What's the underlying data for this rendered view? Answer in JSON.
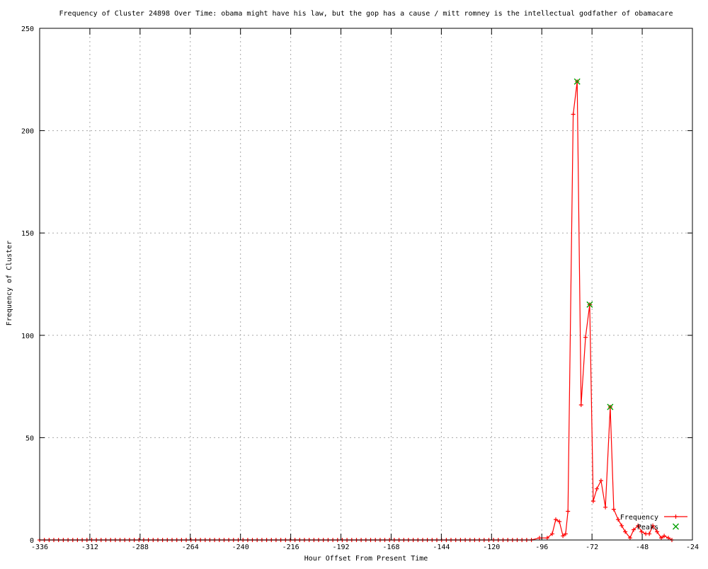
{
  "chart_data": {
    "type": "line",
    "title": "Frequency of Cluster 24898 Over Time: obama might have his law, but the gop has a cause / mitt romney is the intellectual godfather of obamacare",
    "xlabel": "Hour Offset From Present Time",
    "ylabel": "Frequency of Cluster",
    "xlim": [
      -336,
      -24
    ],
    "ylim": [
      0,
      250
    ],
    "x_ticks": [
      -336,
      -312,
      -288,
      -264,
      -240,
      -216,
      -192,
      -168,
      -144,
      -120,
      -96,
      -72,
      -48,
      -24
    ],
    "y_ticks": [
      0,
      50,
      100,
      150,
      200,
      250
    ],
    "grid": "dotted interior gridlines at every major tick",
    "legend_position": "inside bottom-right, no box",
    "colors": {
      "frequency_line": "#ff0000",
      "peaks_marker": "#00a000",
      "axis": "#000000",
      "grid": "#a8a8a8",
      "background": "#ffffff"
    },
    "series": [
      {
        "name": "Frequency",
        "style": "linespoints",
        "marker": "plus",
        "color": "#ff0000",
        "baseline_zeros": {
          "from": -336,
          "to": -99,
          "step": 2.26,
          "value": 0
        },
        "points": [
          [
            -97.1,
            1
          ],
          [
            -93.4,
            1
          ],
          [
            -91.0,
            3
          ],
          [
            -89.3,
            10
          ],
          [
            -87.6,
            9
          ],
          [
            -85.9,
            2
          ],
          [
            -84.6,
            3
          ],
          [
            -83.5,
            14
          ],
          [
            -81.0,
            208
          ],
          [
            -79.1,
            224
          ],
          [
            -77.2,
            66
          ],
          [
            -75.1,
            99
          ],
          [
            -73.1,
            115
          ],
          [
            -71.4,
            19
          ],
          [
            -69.7,
            25
          ],
          [
            -67.7,
            29
          ],
          [
            -65.6,
            16
          ],
          [
            -63.3,
            65
          ],
          [
            -61.6,
            15
          ],
          [
            -59.5,
            10
          ],
          [
            -57.8,
            7
          ],
          [
            -56.1,
            4
          ],
          [
            -53.8,
            1
          ],
          [
            -52.1,
            5
          ],
          [
            -50.0,
            7
          ],
          [
            -48.3,
            4
          ],
          [
            -46.3,
            3
          ],
          [
            -44.6,
            3
          ],
          [
            -42.9,
            7
          ],
          [
            -40.9,
            4
          ],
          [
            -38.9,
            1
          ],
          [
            -37.5,
            2
          ],
          [
            -35.5,
            1
          ],
          [
            -33.8,
            0
          ]
        ]
      },
      {
        "name": "Peaks",
        "style": "points",
        "marker": "cross",
        "color": "#00a000",
        "points": [
          [
            -79.1,
            224
          ],
          [
            -73.1,
            115
          ],
          [
            -63.3,
            65
          ]
        ]
      }
    ]
  }
}
